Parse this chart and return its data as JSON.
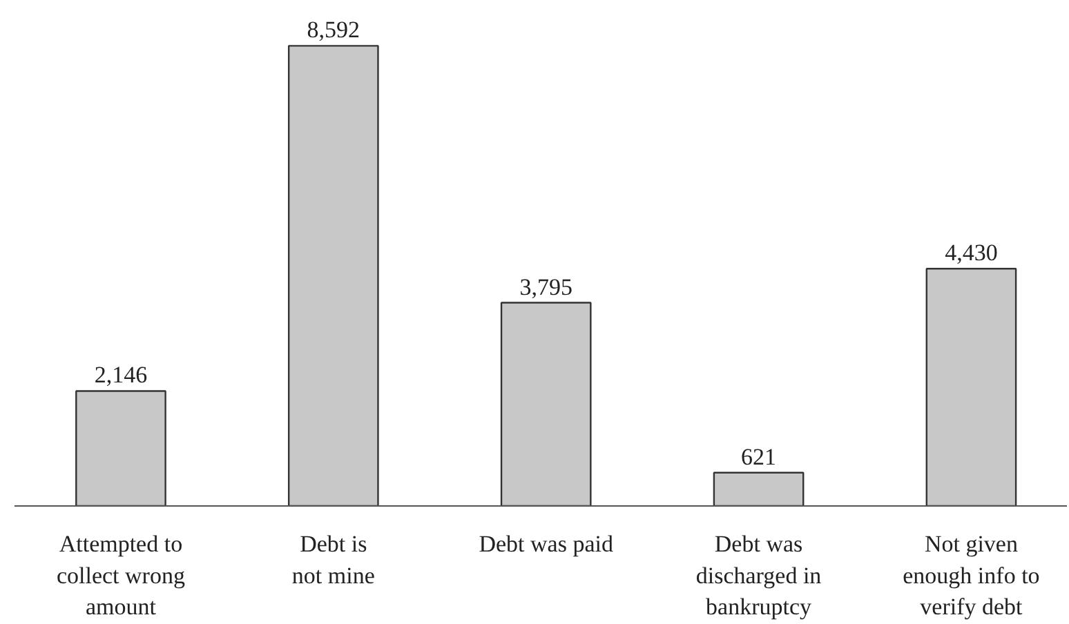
{
  "chart_data": {
    "type": "bar",
    "categories": [
      "Attempted to\ncollect wrong\namount",
      "Debt is\nnot mine",
      "Debt was paid",
      "Debt was\ndischarged in\nbankruptcy",
      "Not given\nenough info to\nverify debt"
    ],
    "values": [
      2146,
      8592,
      3795,
      621,
      4430
    ],
    "color": "#c8c8c8",
    "value_labels": [
      "2,146",
      "8,592",
      "3,795",
      "621",
      "4,430"
    ]
  }
}
